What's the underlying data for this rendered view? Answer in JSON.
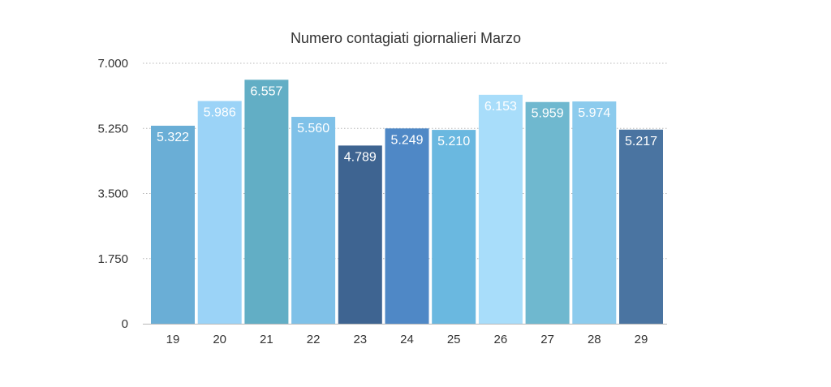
{
  "chart_data": {
    "type": "bar",
    "title": "Numero contagiati giornalieri Marzo",
    "categories": [
      "19",
      "20",
      "21",
      "22",
      "23",
      "24",
      "25",
      "26",
      "27",
      "28",
      "29"
    ],
    "values": [
      5322,
      5986,
      6557,
      5560,
      4789,
      5249,
      5210,
      6153,
      5959,
      5974,
      5217
    ],
    "value_labels": [
      "5.322",
      "5.986",
      "6.557",
      "5.560",
      "4.789",
      "5.249",
      "5.210",
      "6.153",
      "5.959",
      "5.974",
      "5.217"
    ],
    "bar_colors": [
      "#6aaed6",
      "#9bd3f7",
      "#62aec5",
      "#7fc1e8",
      "#3e6491",
      "#4f88c6",
      "#6ab8e0",
      "#a8ddfa",
      "#6fb8cf",
      "#8ccbed",
      "#4a74a1"
    ],
    "ylim": [
      0,
      7000
    ],
    "yticks": [
      0,
      1750,
      3500,
      5250,
      7000
    ],
    "ytick_labels": [
      "0",
      "1.750",
      "3.500",
      "5.250",
      "7.000"
    ],
    "xlabel": "",
    "ylabel": "",
    "grid": true,
    "legend": false
  }
}
